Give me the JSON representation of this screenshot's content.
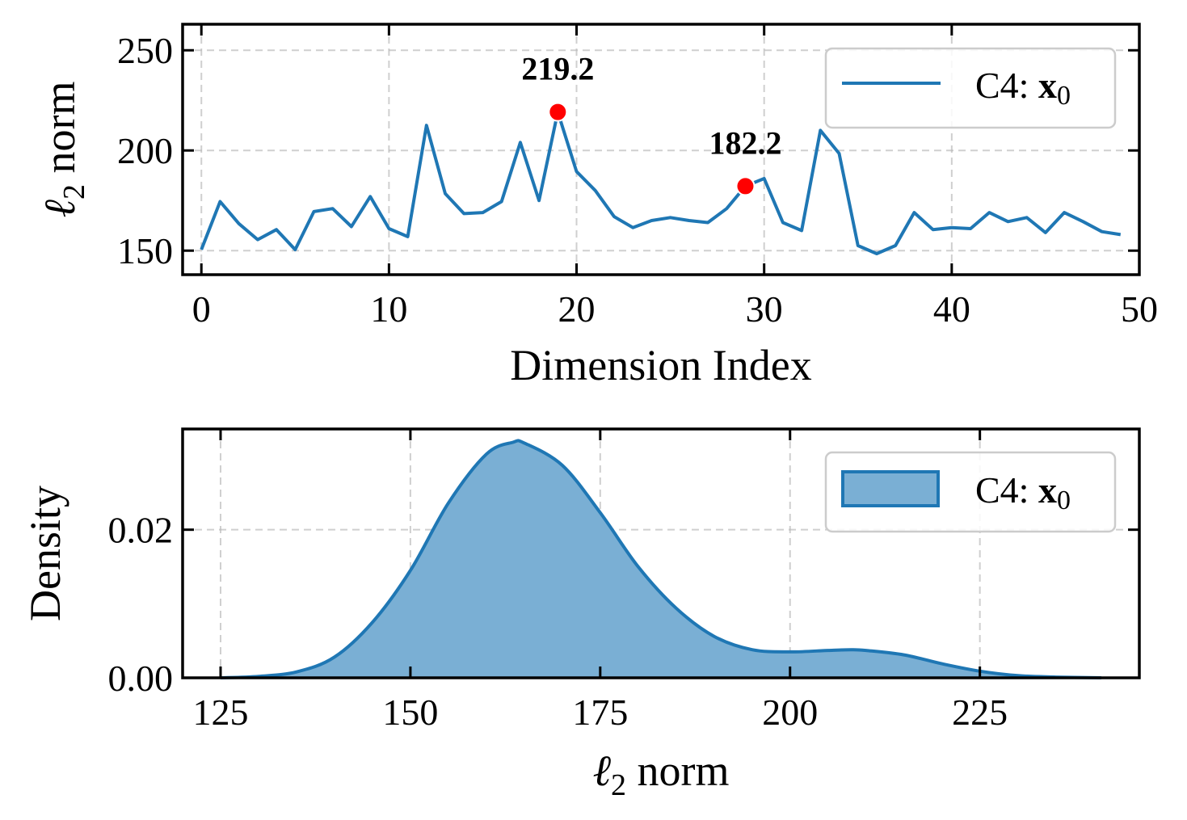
{
  "chart_data": [
    {
      "type": "line",
      "xlabel": "Dimension Index",
      "ylabel_symbol": "ℓ",
      "ylabel_sub": "2",
      "ylabel_rest": " norm",
      "xlim": [
        -1,
        50
      ],
      "ylim": [
        138,
        263
      ],
      "xticks": [
        0,
        10,
        20,
        30,
        40,
        50
      ],
      "yticks": [
        150,
        200,
        250
      ],
      "grid": true,
      "legend": {
        "position": "top-right",
        "label_prefix": "C4: ",
        "label_bold": "x",
        "label_sub": "0"
      },
      "color": "#1f77b4",
      "x": [
        0,
        1,
        2,
        3,
        4,
        5,
        6,
        7,
        8,
        9,
        10,
        11,
        12,
        13,
        14,
        15,
        16,
        17,
        18,
        19,
        20,
        21,
        22,
        23,
        24,
        25,
        26,
        27,
        28,
        29,
        30,
        31,
        32,
        33,
        34,
        35,
        36,
        37,
        38,
        39,
        40,
        41,
        42,
        43,
        44,
        45,
        46,
        47,
        48,
        49
      ],
      "values": [
        150.5,
        174.5,
        163.5,
        155.5,
        160.5,
        150.5,
        169.5,
        171,
        162,
        177,
        161,
        157,
        212.5,
        178.5,
        168.5,
        169,
        174.5,
        204,
        175,
        219.2,
        189.5,
        180,
        167,
        161.5,
        165,
        166.5,
        165,
        164,
        171,
        182.2,
        186,
        164,
        160,
        210,
        198.5,
        152.5,
        148.5,
        152.5,
        169,
        160.5,
        161.5,
        161,
        169,
        164.5,
        166.5,
        159,
        169,
        164.5,
        159.5,
        158
      ],
      "annotations": [
        {
          "x": 19,
          "y": 219.2,
          "label": "219.2"
        },
        {
          "x": 29,
          "y": 182.2,
          "label": "182.2"
        }
      ]
    },
    {
      "type": "area",
      "xlabel_symbol": "ℓ",
      "xlabel_sub": "2",
      "xlabel_rest": " norm",
      "ylabel": "Density",
      "xlim": [
        120,
        246
      ],
      "ylim": [
        0,
        0.0336
      ],
      "xticks": [
        125,
        150,
        175,
        200,
        225
      ],
      "yticks": [
        0.0,
        0.02
      ],
      "ytick_labels": [
        "0.00",
        "0.02"
      ],
      "grid": true,
      "legend": {
        "position": "top-right",
        "label_prefix": "C4: ",
        "label_bold": "x",
        "label_sub": "0"
      },
      "color": "#1f77b4",
      "fill_color": "#7aafd4",
      "x": [
        125,
        130,
        135,
        140,
        145,
        150,
        155,
        160,
        163.5,
        165,
        170,
        175,
        180,
        185,
        190,
        195,
        200,
        205,
        208,
        210,
        215,
        220,
        225,
        230,
        235,
        241
      ],
      "values": [
        0.0,
        0.0002,
        0.0008,
        0.0028,
        0.0075,
        0.0145,
        0.0236,
        0.0302,
        0.0318,
        0.0317,
        0.0287,
        0.0223,
        0.015,
        0.0094,
        0.0056,
        0.0038,
        0.0035,
        0.0037,
        0.0038,
        0.0037,
        0.0031,
        0.0019,
        0.0009,
        0.0003,
        0.0001,
        0.0
      ]
    }
  ]
}
